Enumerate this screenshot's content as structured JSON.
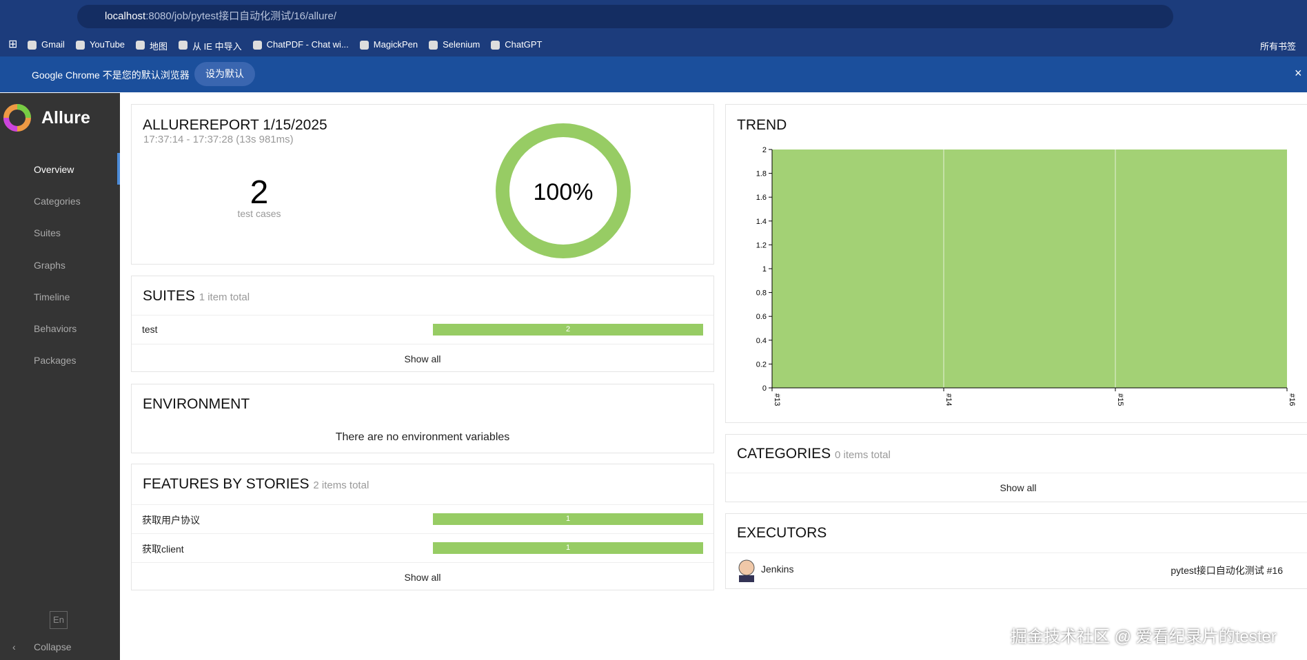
{
  "browser": {
    "url_host": "localhost",
    "url_rest": ":8080/job/pytest接口自动化测试/16/allure/",
    "bookmarks": [
      "Gmail",
      "YouTube",
      "地图",
      "从 IE 中导入",
      "ChatPDF - Chat wi...",
      "MagickPen",
      "Selenium",
      "ChatGPT"
    ],
    "all_bookmarks": "所有书签",
    "banner": "Google Chrome 不是您的默认浏览器",
    "banner_button": "设为默认"
  },
  "sidebar": {
    "brand": "Allure",
    "items": [
      "Overview",
      "Categories",
      "Suites",
      "Graphs",
      "Timeline",
      "Behaviors",
      "Packages"
    ],
    "lang": "En",
    "collapse": "Collapse"
  },
  "summary": {
    "title": "ALLUREREPORT 1/15/2025",
    "time": "17:37:14 - 17:37:28 (13s 981ms)",
    "count": 2,
    "count_label": "test cases",
    "percent": "100%"
  },
  "suites": {
    "title": "SUITES",
    "total": "1 item total",
    "rows": [
      {
        "name": "test",
        "value": 2
      }
    ],
    "show_all": "Show all"
  },
  "environment": {
    "title": "ENVIRONMENT",
    "message": "There are no environment variables"
  },
  "features": {
    "title": "FEATURES BY STORIES",
    "total": "2 items total",
    "rows": [
      {
        "name": "获取用户协议",
        "value": 1
      },
      {
        "name": "获取client",
        "value": 1
      }
    ],
    "show_all": "Show all"
  },
  "trend": {
    "title": "TREND",
    "type": "area",
    "categories": [
      "#13",
      "#14",
      "#15",
      "#16"
    ],
    "values": [
      2,
      2,
      2,
      2
    ],
    "color": "#a3d175",
    "ylim": [
      0,
      2
    ],
    "yticks": [
      0,
      0.2,
      0.4,
      0.6,
      0.8,
      1,
      1.2,
      1.4,
      1.6,
      1.8,
      2
    ]
  },
  "categories": {
    "title": "CATEGORIES",
    "total": "0 items total",
    "show_all": "Show all"
  },
  "executors": {
    "title": "EXECUTORS",
    "name": "Jenkins",
    "build": "pytest接口自动化测试 #16"
  },
  "watermark": "掘金技术社区 @ 爱看纪录片的tester"
}
